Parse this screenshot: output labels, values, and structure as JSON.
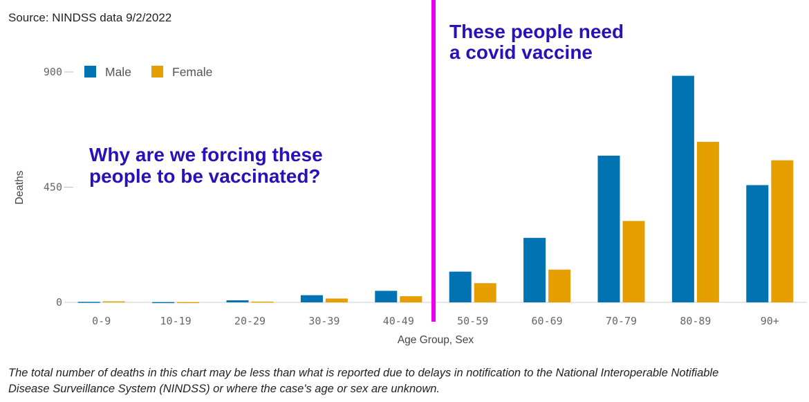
{
  "source": "Source: NINDSS data 9/2/2022",
  "footnote_line1": "The total number of deaths in this chart may be less than what is reported due to delays in notification to the National Interoperable Notifiable",
  "footnote_line2": "Disease Surveillance System (NINDSS) or where the case's age or sex are unknown.",
  "annotations": {
    "left_line1": "Why are we forcing these",
    "left_line2": "people to be vaccinated?",
    "right_line1": "These people need",
    "right_line2": "a covid vaccine",
    "color": "#2a10b8",
    "divider_color": "#ee00ee",
    "divider_after_category": "40-49"
  },
  "chart_data": {
    "type": "bar",
    "categories": [
      "0-9",
      "10-19",
      "20-29",
      "30-39",
      "40-49",
      "50-59",
      "60-69",
      "70-79",
      "80-89",
      "90+"
    ],
    "series": [
      {
        "name": "Male",
        "color": "#0173b2",
        "values": [
          2,
          1,
          8,
          28,
          45,
          120,
          252,
          573,
          885,
          458
        ]
      },
      {
        "name": "Female",
        "color": "#e69f00",
        "values": [
          4,
          1,
          3,
          15,
          24,
          75,
          128,
          318,
          627,
          555
        ]
      }
    ],
    "xlabel": "Age Group, Sex",
    "ylabel": "Deaths",
    "ylim": [
      0,
      900
    ],
    "yticks": [
      0,
      450,
      900
    ],
    "legend": "top-left",
    "grid": false
  }
}
